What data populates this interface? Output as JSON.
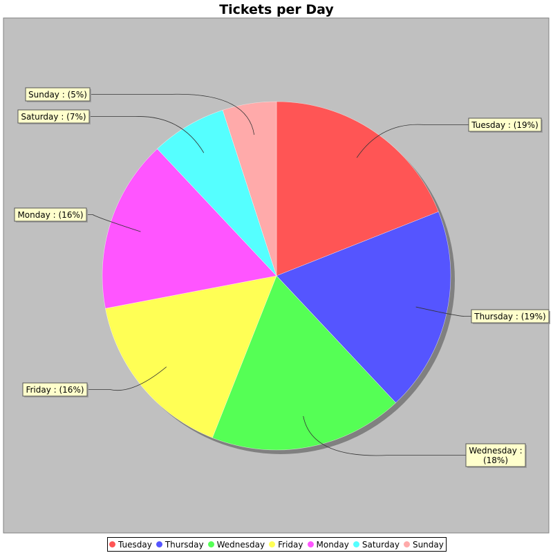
{
  "chart_data": {
    "type": "pie",
    "title": "Tickets per Day",
    "background": "#c0c0c0",
    "label_box_fill": "#ffffcc",
    "categories": [
      "Tuesday",
      "Thursday",
      "Wednesday",
      "Friday",
      "Monday",
      "Saturday",
      "Sunday"
    ],
    "values": [
      19,
      19,
      18,
      16,
      16,
      7,
      5
    ],
    "colors": [
      "#ff5555",
      "#5555ff",
      "#55ff55",
      "#ffff55",
      "#ff55ff",
      "#55ffff",
      "#ffaaaa"
    ],
    "labels": [
      [
        "Tuesday : (19%)"
      ],
      [
        "Thursday : (19%)"
      ],
      [
        "Wednesday :",
        "(18%)"
      ],
      [
        "Friday : (16%)"
      ],
      [
        "Monday : (16%)"
      ],
      [
        "Saturday : (7%)"
      ],
      [
        "Sunday : (5%)"
      ]
    ],
    "legend_position": "bottom"
  }
}
